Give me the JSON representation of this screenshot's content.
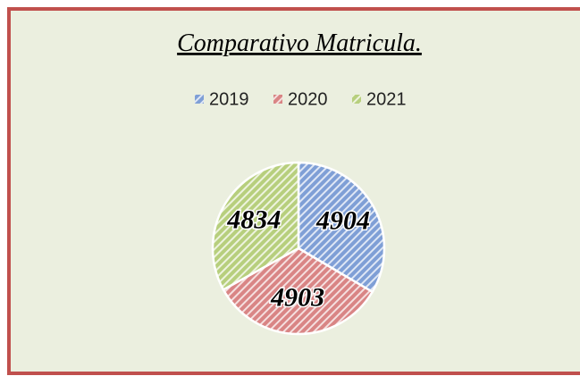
{
  "chart_data": {
    "type": "pie",
    "title": "Comparativo Matricula.",
    "categories": [
      "2019",
      "2020",
      "2021"
    ],
    "values": [
      4904,
      4903,
      4834
    ],
    "colors": [
      "#7f9fd6",
      "#d98585",
      "#b7cf7d"
    ],
    "legend": "top"
  }
}
